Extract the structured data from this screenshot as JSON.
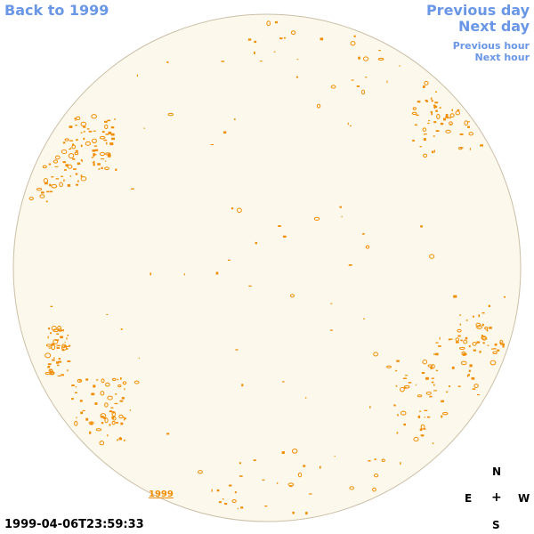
{
  "nav": {
    "back_label": "Back to 1999",
    "previous_day": "Previous day",
    "next_day": "Next day",
    "previous_hour": "Previous hour",
    "next_hour": "Next hour"
  },
  "sky": {
    "disk_fill": "#fdf8ec",
    "disk_stroke": "#cbbfa8",
    "mark_color": "#ef8c00",
    "label": "1999"
  },
  "timestamp": "1999-04-06T23:59:33",
  "compass": {
    "n": "N",
    "e": "E",
    "w": "W",
    "s": "S",
    "center": "+"
  }
}
